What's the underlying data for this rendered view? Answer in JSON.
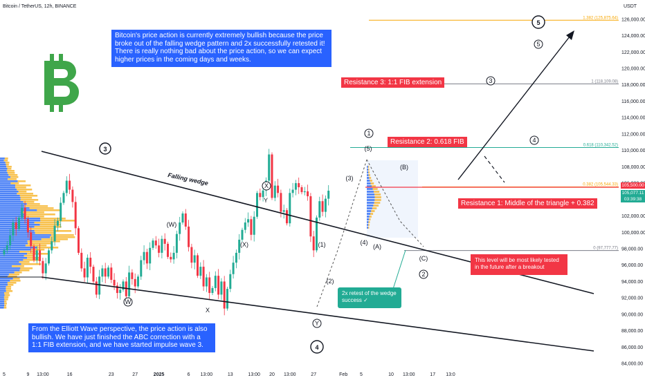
{
  "header": {
    "symbol": "Bitcoin / TetherUS, 12h, BINANCE",
    "currency": "USDT"
  },
  "notes": {
    "top": "Bitcoin's price action is currently extremely bullish because the price broke out of the falling wedge pattern and 2x successfully retested it! There is really nothing bad about the price action, so we can expect higher prices in the coming days and weeks.",
    "bottom": "From the Elliott Wave perspective, the price action is also bullish. We have just finished the ABC correction with a 1:1 FIB extension, and we have started impulse wave 3.",
    "retest": "2x retest of the wedge\nsuccess ✓",
    "level": "This level will be most likely tested\nin the future after a breakout"
  },
  "resistances": {
    "r1": "Resistance 1: Middle of the triangle + 0.382",
    "r2": "Resistance 2: 0.618 FIB",
    "r3": "Resistance 3: 1:1 FIB extension"
  },
  "badges": {
    "price": "105,500.00",
    "current": "105,077.11",
    "timer": "03:39:38"
  },
  "colors": {
    "up": "#22ab94",
    "down": "#f23645",
    "note_blue": "#2962ff",
    "bitcoin_logo": "#3fa64a",
    "volume_blue": "#2f6df5",
    "volume_orange": "#f7b733",
    "fib_orange": "#f7a600",
    "fib_green": "#22ab94",
    "fib_grey": "#787b86"
  },
  "icons": {
    "logo": "bitcoin-icon"
  },
  "chart_data": {
    "type": "candlestick",
    "title": "Bitcoin / TetherUS, 12h, BINANCE",
    "y_axis": {
      "unit": "USDT",
      "range": [
        83500,
        127500
      ],
      "ticks": [
        "84,000.00",
        "86,000.00",
        "88,000.00",
        "90,000.00",
        "92,000.00",
        "94,000.00",
        "96,000.00",
        "98,000.00",
        "100,000.00",
        "102,000.00",
        "104,000.00",
        "106,000.00",
        "108,000.00",
        "110,000.00",
        "112,000.00",
        "114,000.00",
        "116,000.00",
        "118,000.00",
        "120,000.00",
        "122,000.00",
        "124,000.00",
        "126,000.00"
      ]
    },
    "x_axis": {
      "ticks": [
        {
          "label": "5",
          "i": 0
        },
        {
          "label": "9",
          "i": 8
        },
        {
          "label": "13:00",
          "i": 13
        },
        {
          "label": "16",
          "i": 22
        },
        {
          "label": "23",
          "i": 36
        },
        {
          "label": "27",
          "i": 44
        },
        {
          "label": "2025",
          "i": 52
        },
        {
          "label": "6",
          "i": 62
        },
        {
          "label": "13:00",
          "i": 68
        },
        {
          "label": "13",
          "i": 76
        },
        {
          "label": "13:00",
          "i": 84
        },
        {
          "label": "20",
          "i": 90
        },
        {
          "label": "13:00",
          "i": 96
        },
        {
          "label": "27",
          "i": 104
        },
        {
          "label": "Feb",
          "i": 114
        },
        {
          "label": "5",
          "i": 120
        },
        {
          "label": "10",
          "i": 130
        },
        {
          "label": "13:00",
          "i": 136
        },
        {
          "label": "17",
          "i": 144
        },
        {
          "label": "13:0",
          "i": 150
        }
      ]
    },
    "candles_close": [
      97800,
      98400,
      99600,
      101200,
      100400,
      101800,
      103000,
      101600,
      100000,
      98300,
      96600,
      97800,
      96500,
      95000,
      96200,
      97800,
      98900,
      100800,
      101400,
      103600,
      104800,
      106300,
      105200,
      103700,
      100500,
      97500,
      95600,
      94500,
      96900,
      95800,
      94000,
      92400,
      94600,
      95600,
      94600,
      95700,
      94200,
      93500,
      92600,
      93000,
      94000,
      92200,
      95100,
      94300,
      93400,
      94600,
      96600,
      97600,
      96200,
      98100,
      99000,
      98400,
      97500,
      99200,
      98600,
      97000,
      96700,
      97500,
      99800,
      101200,
      102300,
      100700,
      98200,
      96300,
      97200,
      94700,
      95800,
      93400,
      94500,
      92600,
      93200,
      94700,
      92400,
      94000,
      90700,
      93100,
      94900,
      96300,
      97500,
      99100,
      100300,
      101200,
      101600,
      99700,
      101900,
      104800,
      104300,
      105100,
      106300,
      109500,
      104200,
      105700,
      104800,
      102500,
      102700,
      101100,
      104800,
      105200,
      106000,
      105500,
      104900,
      105000,
      104400,
      99500,
      97800,
      101800,
      103800,
      102500,
      104100,
      105077
    ],
    "elliott_labels": [
      "3",
      "W",
      "X",
      "Y",
      "X",
      "Y",
      "4",
      "(W)",
      "(X)",
      "(Y)",
      "(1)",
      "(2)",
      "(3)",
      "(4)",
      "(5)",
      "1",
      "(A)",
      "(B)",
      "(C)",
      "2",
      "3",
      "4",
      "5",
      "5"
    ],
    "fib_levels": [
      {
        "label": "1.382 (125,875.64)",
        "value": 125875.64,
        "color": "#f7a600"
      },
      {
        "label": "1 (118,109.08)",
        "value": 118109.08,
        "color": "#787b86"
      },
      {
        "label": "0.618 (110,342.52)",
        "value": 110342.52,
        "color": "#22ab94"
      },
      {
        "label": "0.382 (105,544.33)",
        "value": 105544.33,
        "color": "#f7a600"
      },
      {
        "label": "0 (97,777.77)",
        "value": 97777.77,
        "color": "#787b86"
      }
    ],
    "annotations": [
      "Falling wedge"
    ],
    "volume_profile": {
      "colors": [
        "#2f6df5",
        "#f7b733"
      ]
    },
    "grid": false
  }
}
